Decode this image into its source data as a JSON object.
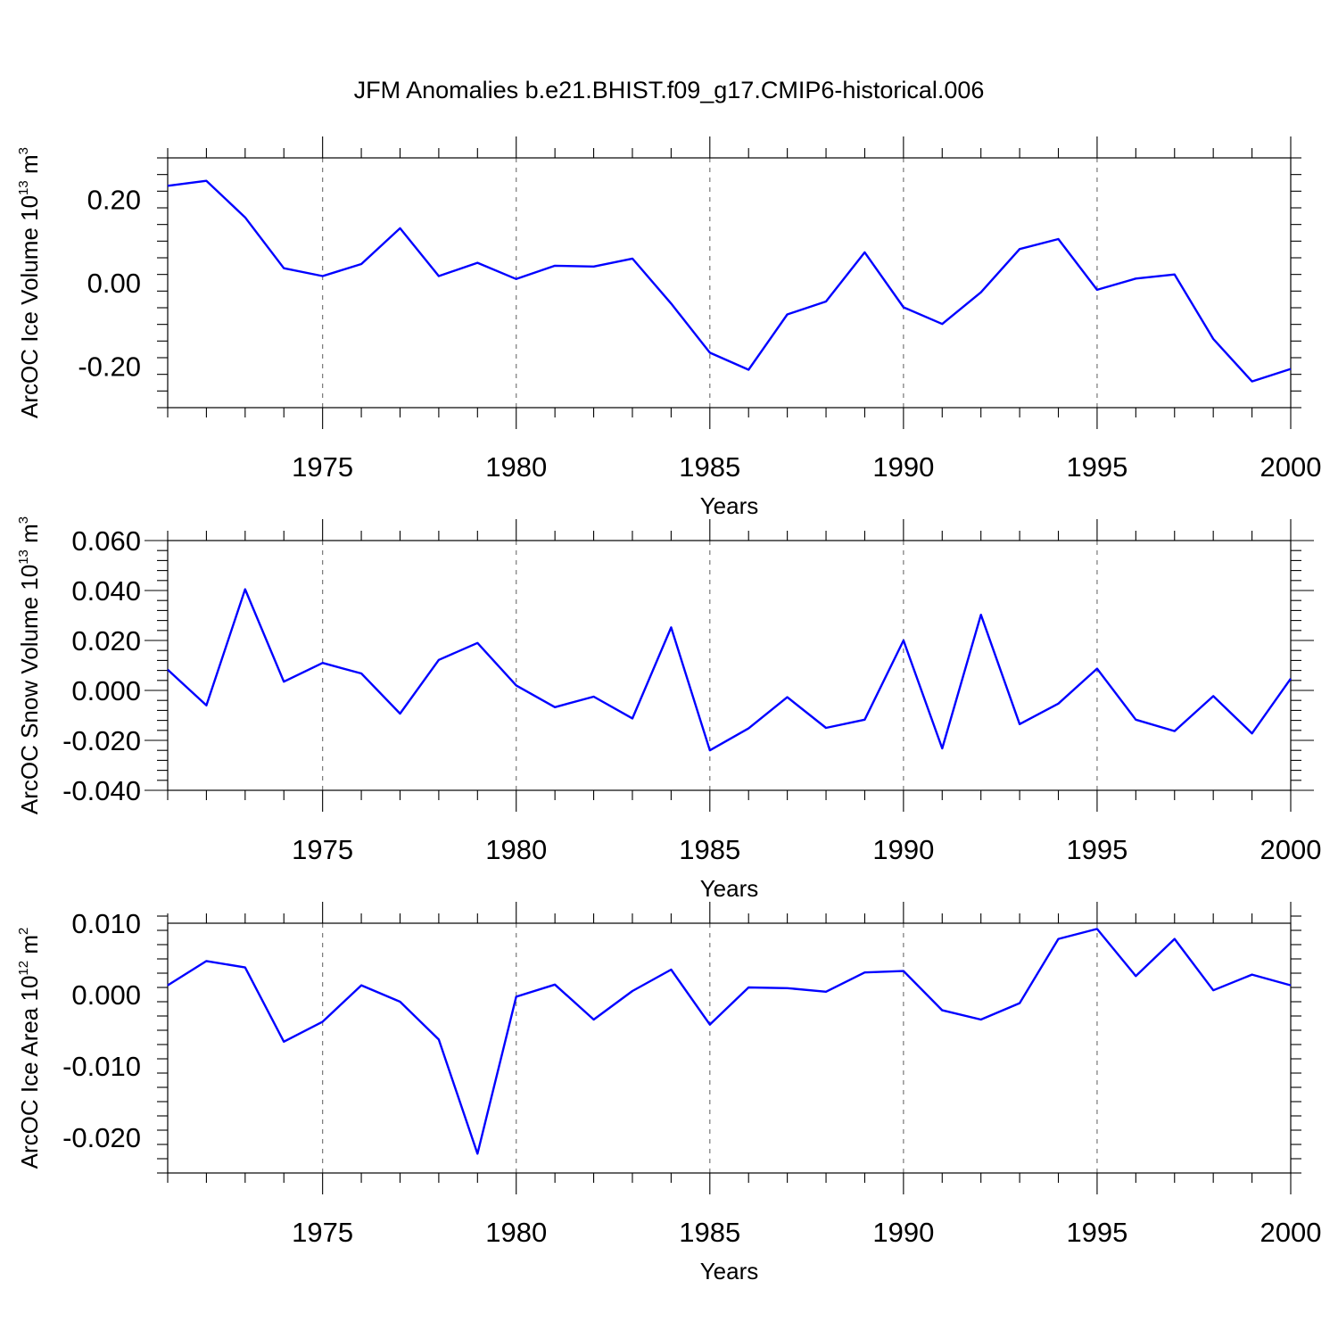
{
  "title": "JFM Anomalies b.e21.BHIST.f09_g17.CMIP6-historical.006",
  "colors": {
    "series": "#0000ff",
    "grid": "#777777",
    "axis": "#000000"
  },
  "chart_data": [
    {
      "type": "line",
      "title": "JFM Anomalies b.e21.BHIST.f09_g17.CMIP6-historical.006",
      "xlabel": "Years",
      "ylabel": "ArcOC Ice Volume 10",
      "ylabel_exp": "13",
      "ylabel_unit": "m",
      "ylabel_unit_exp": "3",
      "xlim": [
        1971,
        2000
      ],
      "ylim": [
        -0.3,
        0.3
      ],
      "yticks": [
        -0.2,
        0.0,
        0.2
      ],
      "ytick_labels": [
        "-0.20",
        "0.00",
        "0.20"
      ],
      "xticks": [
        1975,
        1980,
        1985,
        1990,
        1995,
        2000
      ],
      "xtick_labels": [
        "1975",
        "1980",
        "1985",
        "1990",
        "1995",
        "2000"
      ],
      "grid": "x-dashed",
      "series": [
        {
          "name": "ArcOC Ice Volume",
          "x": [
            1971,
            1972,
            1973,
            1974,
            1975,
            1976,
            1977,
            1978,
            1979,
            1980,
            1981,
            1982,
            1983,
            1984,
            1985,
            1986,
            1987,
            1988,
            1989,
            1990,
            1991,
            1992,
            1993,
            1994,
            1995,
            1996,
            1997,
            1998,
            1999,
            2000
          ],
          "values": [
            0.233,
            0.245,
            0.157,
            0.035,
            0.016,
            0.045,
            0.131,
            0.016,
            0.048,
            0.009,
            0.041,
            0.039,
            0.058,
            -0.05,
            -0.168,
            -0.209,
            -0.076,
            -0.045,
            0.073,
            -0.059,
            -0.099,
            -0.023,
            0.081,
            0.105,
            -0.017,
            0.01,
            0.02,
            -0.135,
            -0.237,
            -0.207
          ]
        }
      ]
    },
    {
      "type": "line",
      "xlabel": "Years",
      "ylabel": "ArcOC Snow Volume 10",
      "ylabel_exp": "13",
      "ylabel_unit": "m",
      "ylabel_unit_exp": "3",
      "xlim": [
        1971,
        2000
      ],
      "ylim": [
        -0.04,
        0.06
      ],
      "yticks": [
        -0.04,
        -0.02,
        0.0,
        0.02,
        0.04,
        0.06
      ],
      "ytick_labels": [
        "-0.040",
        "-0.020",
        "0.000",
        "0.020",
        "0.040",
        "0.060"
      ],
      "xticks": [
        1975,
        1980,
        1985,
        1990,
        1995,
        2000
      ],
      "xtick_labels": [
        "1975",
        "1980",
        "1985",
        "1990",
        "1995",
        "2000"
      ],
      "grid": "x-dashed",
      "series": [
        {
          "name": "ArcOC Snow Volume",
          "x": [
            1971,
            1972,
            1973,
            1974,
            1975,
            1976,
            1977,
            1978,
            1979,
            1980,
            1981,
            1982,
            1983,
            1984,
            1985,
            1986,
            1987,
            1988,
            1989,
            1990,
            1991,
            1992,
            1993,
            1994,
            1995,
            1996,
            1997,
            1998,
            1999,
            2000
          ],
          "values": [
            0.0083,
            -0.006,
            0.0405,
            0.0035,
            0.011,
            0.0068,
            -0.0093,
            0.0122,
            0.019,
            0.002,
            -0.0067,
            -0.0025,
            -0.0112,
            0.0252,
            -0.024,
            -0.0152,
            -0.0027,
            -0.015,
            -0.0117,
            0.02,
            -0.0232,
            0.0303,
            -0.0135,
            -0.0053,
            0.0087,
            -0.0117,
            -0.0163,
            -0.0023,
            -0.0172,
            0.0047
          ]
        }
      ]
    },
    {
      "type": "line",
      "xlabel": "Years",
      "ylabel": "ArcOC Ice Area 10",
      "ylabel_exp": "12",
      "ylabel_unit": "m",
      "ylabel_unit_exp": "2",
      "xlim": [
        1971,
        2000
      ],
      "ylim": [
        -0.025,
        0.01
      ],
      "yticks": [
        -0.02,
        -0.01,
        0.0,
        0.01
      ],
      "ytick_labels": [
        "-0.020",
        "-0.010",
        "0.000",
        "0.010"
      ],
      "xticks": [
        1975,
        1980,
        1985,
        1990,
        1995,
        2000
      ],
      "xtick_labels": [
        "1975",
        "1980",
        "1985",
        "1990",
        "1995",
        "2000"
      ],
      "grid": "x-dashed",
      "series": [
        {
          "name": "ArcOC Ice Area",
          "x": [
            1971,
            1972,
            1973,
            1974,
            1975,
            1976,
            1977,
            1978,
            1979,
            1980,
            1981,
            1982,
            1983,
            1984,
            1985,
            1986,
            1987,
            1988,
            1989,
            1990,
            1991,
            1992,
            1993,
            1994,
            1995,
            1996,
            1997,
            1998,
            1999,
            2000
          ],
          "values": [
            0.0013,
            0.0047,
            0.0038,
            -0.0066,
            -0.0038,
            0.0013,
            -0.001,
            -0.0063,
            -0.0223,
            -0.0003,
            0.0014,
            -0.0035,
            0.0005,
            0.0035,
            -0.0042,
            0.001,
            0.0009,
            0.0004,
            0.0031,
            0.0033,
            -0.0022,
            -0.0035,
            -0.0012,
            0.0078,
            0.0092,
            0.0026,
            0.0078,
            0.0006,
            0.0028,
            0.0013
          ]
        }
      ]
    }
  ]
}
